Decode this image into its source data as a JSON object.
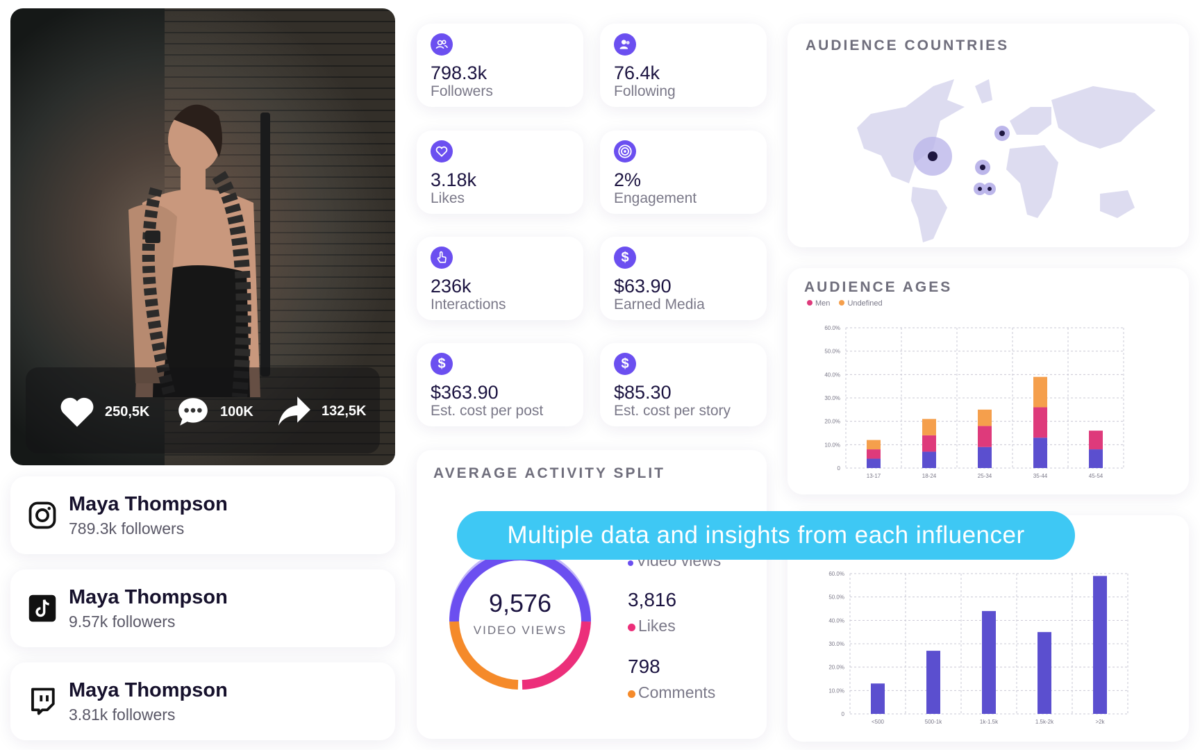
{
  "hero": {
    "likes": "250,5K",
    "comments": "100K",
    "shares": "132,5K"
  },
  "profiles": [
    {
      "platform_icon": "instagram-icon",
      "name": "Maya Thompson",
      "followers": "789.3k followers"
    },
    {
      "platform_icon": "tiktok-icon",
      "name": "Maya Thompson",
      "followers": "9.57k followers"
    },
    {
      "platform_icon": "twitch-icon",
      "name": "Maya Thompson",
      "followers": "3.81k followers"
    }
  ],
  "metrics": [
    {
      "icon": "users-icon",
      "value": "798.3k",
      "label": "Followers"
    },
    {
      "icon": "user-icon",
      "value": "76.4k",
      "label": "Following"
    },
    {
      "icon": "heart-icon",
      "value": "3.18k",
      "label": "Likes"
    },
    {
      "icon": "target-icon",
      "value": "2%",
      "label": "Engagement"
    },
    {
      "icon": "hand-pointer-icon",
      "value": "236k",
      "label": "Interactions"
    },
    {
      "icon": "dollar-icon",
      "value": "$63.90",
      "label": "Earned Media"
    },
    {
      "icon": "dollar-icon",
      "value": "$363.90",
      "label": "Est. cost per post"
    },
    {
      "icon": "dollar-icon",
      "value": "$85.30",
      "label": "Est. cost per story"
    }
  ],
  "countries": {
    "title": "AUDIENCE COUNTRIES"
  },
  "ages": {
    "title": "AUDIENCE AGES",
    "legend": [
      "Men",
      "Undefined"
    ]
  },
  "activity": {
    "title": "AVERAGE ACTIVITY SPLIT",
    "donut_value": "9,576",
    "donut_label": "VIDEO VIEWS",
    "video_views_label": "Video views",
    "likes_value": "3,816",
    "likes_label": "Likes",
    "comments_value": "798",
    "comments_label": "Comments"
  },
  "banner": "Multiple data and insights from each influencer",
  "colors": {
    "accent": "#6b4ff0",
    "bar_blue": "#5b4fcf",
    "bar_pink": "#de3a7b",
    "bar_orange": "#f59f4c",
    "banner": "#3ec8f4",
    "map_land": "#dddcf0"
  },
  "chart_data": [
    {
      "type": "bar",
      "title": "AUDIENCE AGES",
      "categories": [
        "13-17",
        "18-24",
        "25-34",
        "35-44",
        "45-54"
      ],
      "series": [
        {
          "name": "",
          "values": [
            4,
            7,
            9,
            13,
            8
          ]
        },
        {
          "name": "Men",
          "values": [
            4,
            7,
            9,
            13,
            8
          ]
        },
        {
          "name": "Undefined",
          "values": [
            4,
            7,
            7,
            13,
            0
          ]
        }
      ],
      "yticks": [
        "60.0%",
        "50.0%",
        "40.0%",
        "30.0%",
        "20.0%",
        "10.0%",
        "0"
      ],
      "ylim": [
        0,
        60
      ],
      "grid": true,
      "legend": "top-left"
    },
    {
      "type": "bar",
      "title": "",
      "categories": [
        "<500",
        "500-1k",
        "1k-1.5k",
        "1.5k-2k",
        ">2k"
      ],
      "values": [
        13,
        27,
        44,
        35,
        59
      ],
      "yticks": [
        "60.0%",
        "50.0%",
        "40.0%",
        "30.0%",
        "20.0%",
        "10.0%",
        "0"
      ],
      "ylim": [
        0,
        60
      ],
      "grid": true
    }
  ]
}
